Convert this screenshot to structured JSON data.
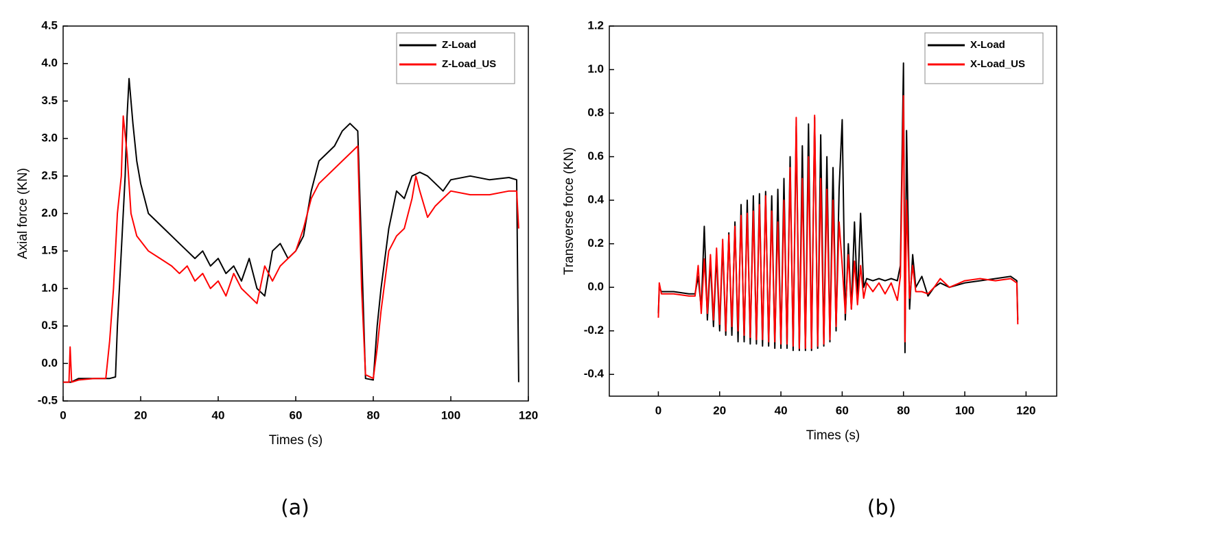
{
  "chart_data": [
    {
      "type": "line",
      "caption": "(a)",
      "xlabel": "Times (s)",
      "ylabel": "Axial force (KN)",
      "xlim": [
        0,
        120
      ],
      "xticks": [
        0,
        20,
        40,
        60,
        80,
        100,
        120
      ],
      "ylim": [
        -0.5,
        4.5
      ],
      "yticks": [
        -0.5,
        {
          "value": 0,
          "label": "0.0"
        },
        0.5,
        {
          "value": 1,
          "label": "1.0"
        },
        1.5,
        {
          "value": 2,
          "label": "2.0"
        },
        2.5,
        {
          "value": 3,
          "label": "3.0"
        },
        3.5,
        {
          "value": 4,
          "label": "4.0"
        },
        4.5
      ],
      "legend": "upper right",
      "series": [
        {
          "name": "Z-Load",
          "color": "#000000",
          "x": [
            0,
            2,
            4,
            8,
            12,
            13.5,
            14,
            15,
            16,
            16.5,
            17,
            18,
            19,
            20,
            22,
            24,
            26,
            28,
            30,
            32,
            34,
            36,
            38,
            40,
            42,
            44,
            46,
            48,
            50,
            52,
            54,
            56,
            58,
            60,
            62,
            64,
            66,
            68,
            70,
            72,
            74,
            76,
            77,
            78,
            80,
            81,
            82,
            84,
            86,
            88,
            90,
            92,
            94,
            96,
            98,
            100,
            105,
            110,
            115,
            117,
            117.5
          ],
          "values": [
            -0.25,
            -0.25,
            -0.2,
            -0.2,
            -0.2,
            -0.18,
            0.5,
            1.5,
            2.5,
            3.3,
            3.8,
            3.2,
            2.7,
            2.4,
            2.0,
            1.9,
            1.8,
            1.7,
            1.6,
            1.5,
            1.4,
            1.5,
            1.3,
            1.4,
            1.2,
            1.3,
            1.1,
            1.4,
            1.0,
            0.9,
            1.5,
            1.6,
            1.4,
            1.5,
            1.7,
            2.3,
            2.7,
            2.8,
            2.9,
            3.1,
            3.2,
            3.1,
            1.5,
            -0.2,
            -0.22,
            0.5,
            1.0,
            1.8,
            2.3,
            2.2,
            2.5,
            2.55,
            2.5,
            2.4,
            2.3,
            2.45,
            2.5,
            2.45,
            2.48,
            2.45,
            -0.25
          ]
        },
        {
          "name": "Z-Load_US",
          "color": "#ff0000",
          "x": [
            0,
            1.5,
            1.8,
            2.2,
            4,
            8,
            11,
            12,
            13,
            14,
            15,
            15.5,
            16.5,
            17.5,
            19,
            22,
            25,
            28,
            30,
            32,
            34,
            36,
            38,
            40,
            42,
            44,
            46,
            48,
            50,
            52,
            54,
            56,
            58,
            60,
            62,
            64,
            66,
            68,
            70,
            72,
            74,
            76,
            77,
            78,
            80,
            81,
            82,
            84,
            86,
            88,
            90,
            91,
            92,
            94,
            96,
            98,
            100,
            105,
            110,
            115,
            117,
            117.5
          ],
          "values": [
            -0.25,
            -0.25,
            0.22,
            -0.25,
            -0.22,
            -0.2,
            -0.2,
            0.3,
            1.0,
            2.0,
            2.5,
            3.3,
            2.8,
            2.0,
            1.7,
            1.5,
            1.4,
            1.3,
            1.2,
            1.3,
            1.1,
            1.2,
            1.0,
            1.1,
            0.9,
            1.2,
            1.0,
            0.9,
            0.8,
            1.3,
            1.1,
            1.3,
            1.4,
            1.5,
            1.8,
            2.2,
            2.4,
            2.5,
            2.6,
            2.7,
            2.8,
            2.9,
            1.0,
            -0.15,
            -0.2,
            0.2,
            0.7,
            1.5,
            1.7,
            1.8,
            2.2,
            2.5,
            2.3,
            1.95,
            2.1,
            2.2,
            2.3,
            2.25,
            2.25,
            2.3,
            2.3,
            1.8
          ]
        }
      ]
    },
    {
      "type": "line",
      "caption": "(b)",
      "xlabel": "Times (s)",
      "ylabel": "Transverse force (KN)",
      "xlim": [
        -16,
        130
      ],
      "xticks": [
        0,
        20,
        40,
        60,
        80,
        100,
        120
      ],
      "ylim": [
        -0.5,
        1.2
      ],
      "yticks": [
        -0.4,
        -0.2,
        {
          "value": 0,
          "label": "0.0"
        },
        0.2,
        0.4,
        0.6,
        0.8,
        {
          "value": 1,
          "label": "1.0"
        },
        1.2
      ],
      "legend": "upper right",
      "series": [
        {
          "name": "X-Load",
          "color": "#000000",
          "x": [
            0,
            0.3,
            1,
            5,
            10,
            12,
            13,
            14,
            15,
            16,
            17,
            18,
            19,
            20,
            21,
            22,
            23,
            24,
            25,
            26,
            27,
            28,
            29,
            30,
            31,
            32,
            33,
            34,
            35,
            36,
            37,
            38,
            39,
            40,
            41,
            42,
            43,
            44,
            45,
            46,
            47,
            48,
            49,
            50,
            51,
            52,
            53,
            54,
            55,
            56,
            57,
            58,
            59,
            60,
            61,
            62,
            63,
            64,
            65,
            66,
            67,
            68,
            70,
            72,
            74,
            76,
            78,
            79,
            80,
            80.5,
            81,
            82,
            83,
            84,
            86,
            88,
            90,
            92,
            95,
            100,
            105,
            110,
            115,
            117,
            117.3
          ],
          "values": [
            -0.12,
            0.0,
            -0.02,
            -0.02,
            -0.03,
            -0.03,
            0.05,
            -0.1,
            0.28,
            -0.15,
            0.12,
            -0.18,
            0.15,
            -0.2,
            0.2,
            -0.22,
            0.25,
            -0.22,
            0.3,
            -0.25,
            0.38,
            -0.25,
            0.4,
            -0.26,
            0.42,
            -0.26,
            0.43,
            -0.27,
            0.44,
            -0.27,
            0.42,
            -0.28,
            0.45,
            -0.28,
            0.5,
            -0.28,
            0.6,
            -0.29,
            0.74,
            -0.29,
            0.65,
            -0.29,
            0.75,
            -0.29,
            0.78,
            -0.28,
            0.7,
            -0.27,
            0.6,
            -0.25,
            0.55,
            -0.2,
            0.45,
            0.77,
            -0.15,
            0.2,
            -0.1,
            0.3,
            -0.05,
            0.34,
            0.0,
            0.04,
            0.03,
            0.04,
            0.03,
            0.04,
            0.03,
            0.1,
            1.03,
            -0.3,
            0.72,
            -0.1,
            0.15,
            0.0,
            0.05,
            -0.04,
            0.0,
            0.02,
            0.0,
            0.02,
            0.03,
            0.04,
            0.05,
            0.03,
            -0.15
          ]
        },
        {
          "name": "X-Load_US",
          "color": "#ff0000",
          "x": [
            0,
            0.3,
            1,
            5,
            10,
            12,
            13,
            14,
            15,
            16,
            17,
            18,
            19,
            20,
            21,
            22,
            23,
            24,
            25,
            26,
            27,
            28,
            29,
            30,
            31,
            32,
            33,
            34,
            35,
            36,
            37,
            38,
            39,
            40,
            41,
            42,
            43,
            44,
            45,
            46,
            47,
            48,
            49,
            50,
            51,
            52,
            53,
            54,
            55,
            56,
            57,
            58,
            59,
            60,
            61,
            62,
            63,
            64,
            65,
            66,
            67,
            68,
            70,
            72,
            74,
            76,
            78,
            79,
            80,
            80.5,
            81,
            82,
            83,
            84,
            86,
            88,
            90,
            92,
            95,
            100,
            105,
            110,
            115,
            117,
            117.3
          ],
          "values": [
            -0.14,
            0.02,
            -0.03,
            -0.03,
            -0.04,
            -0.04,
            0.1,
            -0.12,
            0.13,
            -0.12,
            0.15,
            -0.15,
            0.18,
            -0.17,
            0.22,
            -0.2,
            0.24,
            -0.18,
            0.28,
            -0.2,
            0.33,
            -0.22,
            0.34,
            -0.23,
            0.35,
            -0.24,
            0.38,
            -0.24,
            0.42,
            -0.25,
            0.35,
            -0.25,
            0.3,
            -0.26,
            0.4,
            -0.26,
            0.55,
            -0.27,
            0.78,
            -0.28,
            0.5,
            -0.28,
            0.6,
            -0.28,
            0.79,
            -0.27,
            0.5,
            -0.26,
            0.45,
            -0.24,
            0.4,
            -0.18,
            0.3,
            0.1,
            -0.12,
            0.15,
            -0.1,
            0.12,
            -0.08,
            0.1,
            -0.05,
            0.02,
            -0.02,
            0.02,
            -0.03,
            0.02,
            -0.06,
            0.05,
            0.88,
            -0.25,
            0.4,
            -0.05,
            0.1,
            -0.02,
            -0.02,
            -0.03,
            0.0,
            0.04,
            0.0,
            0.03,
            0.04,
            0.03,
            0.04,
            0.02,
            -0.17
          ]
        }
      ]
    }
  ]
}
